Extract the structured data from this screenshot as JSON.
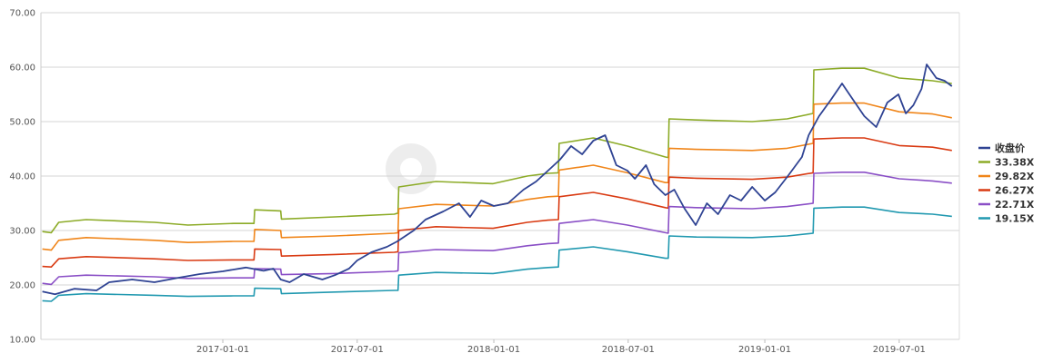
{
  "chart_data": {
    "type": "line",
    "ylim": [
      10,
      70
    ],
    "yticks": [
      "10.00",
      "20.00",
      "30.00",
      "40.00",
      "50.00",
      "60.00",
      "70.00"
    ],
    "xticks": [
      {
        "label": "2017-01-01",
        "date": "2017-01-01"
      },
      {
        "label": "2017-07-01",
        "date": "2017-07-01"
      },
      {
        "label": "2018-01-01",
        "date": "2018-01-01"
      },
      {
        "label": "2018-07-01",
        "date": "2018-07-01"
      },
      {
        "label": "2019-01-01",
        "date": "2019-01-01"
      },
      {
        "label": "2019-07-01",
        "date": "2019-07-01"
      }
    ],
    "legend_position": "right",
    "grid": true,
    "series": [
      {
        "name": "收盘价",
        "color": "#2f4393",
        "points": [
          [
            "2016-05-03",
            18.8
          ],
          [
            "2016-05-20",
            18.3
          ],
          [
            "2016-06-15",
            19.3
          ],
          [
            "2016-07-15",
            19.0
          ],
          [
            "2016-08-01",
            20.5
          ],
          [
            "2016-09-01",
            21.0
          ],
          [
            "2016-10-01",
            20.5
          ],
          [
            "2016-11-01",
            21.3
          ],
          [
            "2016-12-01",
            22.0
          ],
          [
            "2017-01-01",
            22.5
          ],
          [
            "2017-02-01",
            23.2
          ],
          [
            "2017-02-25",
            22.6
          ],
          [
            "2017-03-10",
            23.0
          ],
          [
            "2017-03-20",
            21.0
          ],
          [
            "2017-04-01",
            20.5
          ],
          [
            "2017-04-20",
            22.0
          ],
          [
            "2017-05-15",
            21.0
          ],
          [
            "2017-06-01",
            21.8
          ],
          [
            "2017-06-20",
            23.0
          ],
          [
            "2017-07-01",
            24.5
          ],
          [
            "2017-07-20",
            26.0
          ],
          [
            "2017-08-10",
            27.0
          ],
          [
            "2017-08-24",
            28.0
          ],
          [
            "2017-09-15",
            30.0
          ],
          [
            "2017-10-01",
            32.0
          ],
          [
            "2017-10-25",
            33.5
          ],
          [
            "2017-11-15",
            35.0
          ],
          [
            "2017-11-30",
            32.5
          ],
          [
            "2017-12-15",
            35.5
          ],
          [
            "2018-01-01",
            34.5
          ],
          [
            "2018-01-20",
            35.0
          ],
          [
            "2018-02-10",
            37.5
          ],
          [
            "2018-02-27",
            39.0
          ],
          [
            "2018-03-15",
            41.0
          ],
          [
            "2018-03-31",
            43.0
          ],
          [
            "2018-04-15",
            45.5
          ],
          [
            "2018-04-30",
            44.0
          ],
          [
            "2018-05-15",
            46.5
          ],
          [
            "2018-05-31",
            47.5
          ],
          [
            "2018-06-15",
            42.0
          ],
          [
            "2018-06-30",
            41.0
          ],
          [
            "2018-07-10",
            39.5
          ],
          [
            "2018-07-25",
            42.0
          ],
          [
            "2018-08-05",
            38.5
          ],
          [
            "2018-08-20",
            36.5
          ],
          [
            "2018-09-01",
            37.5
          ],
          [
            "2018-09-15",
            34.0
          ],
          [
            "2018-09-30",
            31.0
          ],
          [
            "2018-10-15",
            35.0
          ],
          [
            "2018-10-30",
            33.0
          ],
          [
            "2018-11-15",
            36.5
          ],
          [
            "2018-11-30",
            35.5
          ],
          [
            "2018-12-15",
            38.0
          ],
          [
            "2019-01-01",
            35.5
          ],
          [
            "2019-01-15",
            37.0
          ],
          [
            "2019-02-01",
            40.0
          ],
          [
            "2019-02-20",
            43.5
          ],
          [
            "2019-03-01",
            47.5
          ],
          [
            "2019-03-15",
            51.0
          ],
          [
            "2019-03-31",
            54.0
          ],
          [
            "2019-04-15",
            57.0
          ],
          [
            "2019-04-30",
            54.0
          ],
          [
            "2019-05-15",
            51.0
          ],
          [
            "2019-05-31",
            49.0
          ],
          [
            "2019-06-15",
            53.5
          ],
          [
            "2019-06-30",
            55.0
          ],
          [
            "2019-07-10",
            51.5
          ],
          [
            "2019-07-20",
            53.0
          ],
          [
            "2019-07-31",
            56.0
          ],
          [
            "2019-08-07",
            60.5
          ],
          [
            "2019-08-20",
            58.0
          ],
          [
            "2019-08-31",
            57.5
          ],
          [
            "2019-09-10",
            56.5
          ]
        ]
      },
      {
        "name": "33.38X",
        "color": "#8cab27",
        "points": [
          [
            "2016-05-03",
            29.8
          ],
          [
            "2016-05-15",
            29.6
          ],
          [
            "2016-05-25",
            31.5
          ],
          [
            "2016-07-01",
            32.0
          ],
          [
            "2016-10-01",
            31.5
          ],
          [
            "2016-11-15",
            31.0
          ],
          [
            "2017-01-15",
            31.3
          ],
          [
            "2017-02-12",
            31.3
          ],
          [
            "2017-02-13",
            33.8
          ],
          [
            "2017-03-20",
            33.6
          ],
          [
            "2017-03-21",
            32.1
          ],
          [
            "2017-06-01",
            32.5
          ],
          [
            "2017-08-20",
            33.0
          ],
          [
            "2017-08-25",
            33.2
          ],
          [
            "2017-08-26",
            38.0
          ],
          [
            "2017-10-15",
            39.0
          ],
          [
            "2017-12-31",
            38.6
          ],
          [
            "2018-02-15",
            40.0
          ],
          [
            "2018-03-15",
            40.5
          ],
          [
            "2018-03-29",
            40.6
          ],
          [
            "2018-03-30",
            46.0
          ],
          [
            "2018-05-15",
            47.0
          ],
          [
            "2018-06-30",
            45.5
          ],
          [
            "2018-08-20",
            43.5
          ],
          [
            "2018-08-24",
            43.4
          ],
          [
            "2018-08-25",
            50.5
          ],
          [
            "2018-10-01",
            50.3
          ],
          [
            "2018-12-15",
            50.0
          ],
          [
            "2019-01-31",
            50.5
          ],
          [
            "2019-03-07",
            51.5
          ],
          [
            "2019-03-08",
            59.5
          ],
          [
            "2019-04-15",
            59.8
          ],
          [
            "2019-05-15",
            59.8
          ],
          [
            "2019-07-01",
            58.0
          ],
          [
            "2019-08-15",
            57.5
          ],
          [
            "2019-09-10",
            57.0
          ]
        ]
      },
      {
        "name": "29.82X",
        "color": "#f08519",
        "points": [
          [
            "2016-05-03",
            26.6
          ],
          [
            "2016-05-15",
            26.4
          ],
          [
            "2016-05-25",
            28.2
          ],
          [
            "2016-07-01",
            28.7
          ],
          [
            "2016-10-01",
            28.2
          ],
          [
            "2016-11-15",
            27.8
          ],
          [
            "2017-01-15",
            28.0
          ],
          [
            "2017-02-12",
            28.0
          ],
          [
            "2017-02-13",
            30.2
          ],
          [
            "2017-03-20",
            30.0
          ],
          [
            "2017-03-21",
            28.7
          ],
          [
            "2017-06-01",
            29.0
          ],
          [
            "2017-08-20",
            29.5
          ],
          [
            "2017-08-25",
            29.6
          ],
          [
            "2017-08-26",
            34.0
          ],
          [
            "2017-10-15",
            34.8
          ],
          [
            "2017-12-31",
            34.5
          ],
          [
            "2018-02-15",
            35.7
          ],
          [
            "2018-03-15",
            36.2
          ],
          [
            "2018-03-29",
            36.3
          ],
          [
            "2018-03-30",
            41.1
          ],
          [
            "2018-05-15",
            42.0
          ],
          [
            "2018-06-30",
            40.6
          ],
          [
            "2018-08-20",
            38.8
          ],
          [
            "2018-08-24",
            38.8
          ],
          [
            "2018-08-25",
            45.1
          ],
          [
            "2018-10-01",
            44.9
          ],
          [
            "2018-12-15",
            44.7
          ],
          [
            "2019-01-31",
            45.1
          ],
          [
            "2019-03-07",
            46.0
          ],
          [
            "2019-03-08",
            53.2
          ],
          [
            "2019-04-15",
            53.4
          ],
          [
            "2019-05-15",
            53.4
          ],
          [
            "2019-07-01",
            51.8
          ],
          [
            "2019-08-15",
            51.4
          ],
          [
            "2019-09-10",
            50.7
          ]
        ]
      },
      {
        "name": "26.27X",
        "color": "#d93a12",
        "points": [
          [
            "2016-05-03",
            23.4
          ],
          [
            "2016-05-15",
            23.3
          ],
          [
            "2016-05-25",
            24.8
          ],
          [
            "2016-07-01",
            25.2
          ],
          [
            "2016-10-01",
            24.8
          ],
          [
            "2016-11-15",
            24.5
          ],
          [
            "2017-01-15",
            24.6
          ],
          [
            "2017-02-12",
            24.6
          ],
          [
            "2017-02-13",
            26.6
          ],
          [
            "2017-03-20",
            26.5
          ],
          [
            "2017-03-21",
            25.3
          ],
          [
            "2017-06-01",
            25.6
          ],
          [
            "2017-08-20",
            26.0
          ],
          [
            "2017-08-25",
            26.1
          ],
          [
            "2017-08-26",
            30.0
          ],
          [
            "2017-10-15",
            30.7
          ],
          [
            "2017-12-31",
            30.4
          ],
          [
            "2018-02-15",
            31.5
          ],
          [
            "2018-03-15",
            31.9
          ],
          [
            "2018-03-29",
            32.0
          ],
          [
            "2018-03-30",
            36.2
          ],
          [
            "2018-05-15",
            37.0
          ],
          [
            "2018-06-30",
            35.8
          ],
          [
            "2018-08-20",
            34.2
          ],
          [
            "2018-08-24",
            34.1
          ],
          [
            "2018-08-25",
            39.8
          ],
          [
            "2018-10-01",
            39.6
          ],
          [
            "2018-12-15",
            39.4
          ],
          [
            "2019-01-31",
            39.8
          ],
          [
            "2019-03-07",
            40.6
          ],
          [
            "2019-03-08",
            46.8
          ],
          [
            "2019-04-15",
            47.0
          ],
          [
            "2019-05-15",
            47.0
          ],
          [
            "2019-07-01",
            45.6
          ],
          [
            "2019-08-15",
            45.3
          ],
          [
            "2019-09-10",
            44.7
          ]
        ]
      },
      {
        "name": "22.71X",
        "color": "#8a4fc6",
        "points": [
          [
            "2016-05-03",
            20.3
          ],
          [
            "2016-05-15",
            20.1
          ],
          [
            "2016-05-25",
            21.5
          ],
          [
            "2016-07-01",
            21.8
          ],
          [
            "2016-10-01",
            21.5
          ],
          [
            "2016-11-15",
            21.2
          ],
          [
            "2017-01-15",
            21.3
          ],
          [
            "2017-02-12",
            21.3
          ],
          [
            "2017-02-13",
            23.0
          ],
          [
            "2017-03-20",
            22.9
          ],
          [
            "2017-03-21",
            21.9
          ],
          [
            "2017-06-01",
            22.1
          ],
          [
            "2017-08-20",
            22.5
          ],
          [
            "2017-08-25",
            22.6
          ],
          [
            "2017-08-26",
            25.9
          ],
          [
            "2017-10-15",
            26.5
          ],
          [
            "2017-12-31",
            26.3
          ],
          [
            "2018-02-15",
            27.2
          ],
          [
            "2018-03-15",
            27.6
          ],
          [
            "2018-03-29",
            27.7
          ],
          [
            "2018-03-30",
            31.3
          ],
          [
            "2018-05-15",
            32.0
          ],
          [
            "2018-06-30",
            31.0
          ],
          [
            "2018-08-20",
            29.6
          ],
          [
            "2018-08-24",
            29.5
          ],
          [
            "2018-08-25",
            34.4
          ],
          [
            "2018-10-01",
            34.2
          ],
          [
            "2018-12-15",
            34.0
          ],
          [
            "2019-01-31",
            34.4
          ],
          [
            "2019-03-07",
            35.0
          ],
          [
            "2019-03-08",
            40.5
          ],
          [
            "2019-04-15",
            40.7
          ],
          [
            "2019-05-15",
            40.7
          ],
          [
            "2019-07-01",
            39.5
          ],
          [
            "2019-08-15",
            39.1
          ],
          [
            "2019-09-10",
            38.7
          ]
        ]
      },
      {
        "name": "19.15X",
        "color": "#2199b0",
        "points": [
          [
            "2016-05-03",
            17.1
          ],
          [
            "2016-05-15",
            17.0
          ],
          [
            "2016-05-25",
            18.1
          ],
          [
            "2016-07-01",
            18.4
          ],
          [
            "2016-10-01",
            18.1
          ],
          [
            "2016-11-15",
            17.9
          ],
          [
            "2017-01-15",
            18.0
          ],
          [
            "2017-02-12",
            18.0
          ],
          [
            "2017-02-13",
            19.4
          ],
          [
            "2017-03-20",
            19.3
          ],
          [
            "2017-03-21",
            18.4
          ],
          [
            "2017-06-01",
            18.7
          ],
          [
            "2017-08-20",
            19.0
          ],
          [
            "2017-08-25",
            19.0
          ],
          [
            "2017-08-26",
            21.8
          ],
          [
            "2017-10-15",
            22.3
          ],
          [
            "2017-12-31",
            22.1
          ],
          [
            "2018-02-15",
            22.9
          ],
          [
            "2018-03-15",
            23.2
          ],
          [
            "2018-03-29",
            23.3
          ],
          [
            "2018-03-30",
            26.4
          ],
          [
            "2018-05-15",
            27.0
          ],
          [
            "2018-06-30",
            26.1
          ],
          [
            "2018-08-20",
            24.9
          ],
          [
            "2018-08-24",
            24.9
          ],
          [
            "2018-08-25",
            29.0
          ],
          [
            "2018-10-01",
            28.8
          ],
          [
            "2018-12-15",
            28.7
          ],
          [
            "2019-01-31",
            29.0
          ],
          [
            "2019-03-07",
            29.5
          ],
          [
            "2019-03-08",
            34.1
          ],
          [
            "2019-04-15",
            34.3
          ],
          [
            "2019-05-15",
            34.3
          ],
          [
            "2019-07-01",
            33.3
          ],
          [
            "2019-08-15",
            33.0
          ],
          [
            "2019-09-10",
            32.6
          ]
        ]
      }
    ]
  }
}
